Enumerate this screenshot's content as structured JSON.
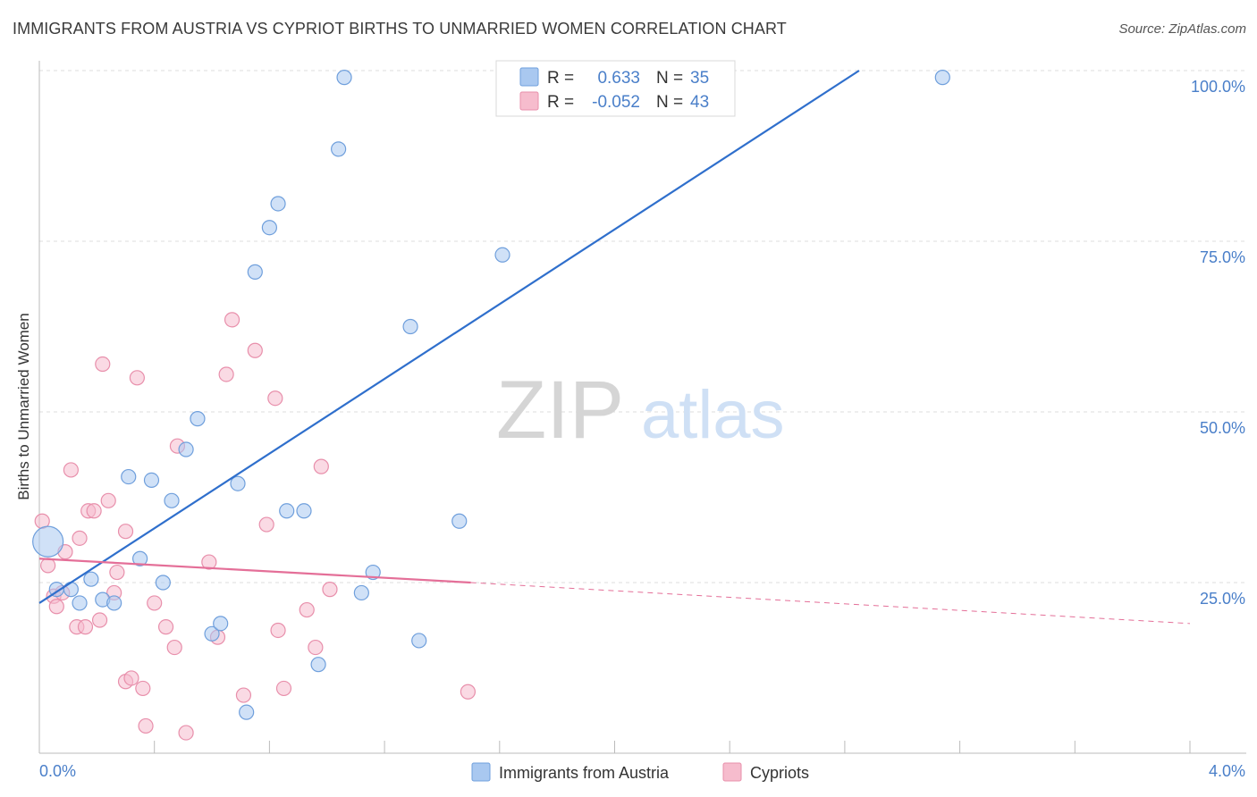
{
  "title": "IMMIGRANTS FROM AUSTRIA VS CYPRIOT BIRTHS TO UNMARRIED WOMEN CORRELATION CHART",
  "source": "Source: ZipAtlas.com",
  "watermark": {
    "zip": "ZIP",
    "atlas": "atlas"
  },
  "colors": {
    "blue_fill": "#a9c8f0",
    "blue_stroke": "#6f9fdc",
    "blue_line": "#2f6fcc",
    "pink_fill": "#f6bccd",
    "pink_stroke": "#e88fab",
    "pink_line": "#e46f98",
    "axis_text": "#4a7fc9",
    "grid": "#dddddd"
  },
  "legend_box": {
    "rows": [
      {
        "r_label": "R =",
        "r_value": "0.633",
        "n_label": "N =",
        "n_value": "35"
      },
      {
        "r_label": "R =",
        "r_value": "-0.052",
        "n_label": "N =",
        "n_value": "43"
      }
    ]
  },
  "chart_data": {
    "type": "scatter",
    "xlabel": "",
    "ylabel": "Births to Unmarried Women",
    "xlim": [
      0,
      4.0
    ],
    "ylim": [
      0,
      100
    ],
    "x_tick_labels": [
      "0.0%",
      "4.0%"
    ],
    "y_tick_values": [
      25,
      50,
      75,
      100
    ],
    "y_tick_labels": [
      "25.0%",
      "50.0%",
      "75.0%",
      "100.0%"
    ],
    "grid": true,
    "legend_position": "bottom",
    "series": [
      {
        "name": "Immigrants from Austria",
        "color": "blue",
        "r": 0.633,
        "n": 35,
        "trend": {
          "x1": 0.0,
          "y1": 22.0,
          "x2": 2.85,
          "y2": 100.0
        },
        "points": [
          {
            "x": 0.03,
            "y": 31.0,
            "big": true
          },
          {
            "x": 0.06,
            "y": 24.0
          },
          {
            "x": 0.11,
            "y": 24.0
          },
          {
            "x": 0.14,
            "y": 22.0
          },
          {
            "x": 0.18,
            "y": 25.5
          },
          {
            "x": 0.22,
            "y": 22.5
          },
          {
            "x": 0.26,
            "y": 22.0
          },
          {
            "x": 0.31,
            "y": 40.5
          },
          {
            "x": 0.35,
            "y": 28.5
          },
          {
            "x": 0.39,
            "y": 40.0
          },
          {
            "x": 0.43,
            "y": 25.0
          },
          {
            "x": 0.46,
            "y": 37.0
          },
          {
            "x": 0.51,
            "y": 44.5
          },
          {
            "x": 0.55,
            "y": 49.0
          },
          {
            "x": 0.6,
            "y": 17.5
          },
          {
            "x": 0.63,
            "y": 19.0
          },
          {
            "x": 0.69,
            "y": 39.5
          },
          {
            "x": 0.72,
            "y": 6.0
          },
          {
            "x": 0.75,
            "y": 70.5
          },
          {
            "x": 0.8,
            "y": 77.0
          },
          {
            "x": 0.83,
            "y": 80.5
          },
          {
            "x": 0.86,
            "y": 35.5
          },
          {
            "x": 0.92,
            "y": 35.5
          },
          {
            "x": 0.97,
            "y": 13.0
          },
          {
            "x": 1.04,
            "y": 88.5
          },
          {
            "x": 1.06,
            "y": 99.0
          },
          {
            "x": 1.12,
            "y": 23.5
          },
          {
            "x": 1.16,
            "y": 26.5
          },
          {
            "x": 1.32,
            "y": 16.5
          },
          {
            "x": 1.29,
            "y": 62.5
          },
          {
            "x": 1.46,
            "y": 34.0
          },
          {
            "x": 1.61,
            "y": 73.0
          },
          {
            "x": 1.83,
            "y": 99.0
          },
          {
            "x": 2.26,
            "y": 99.0
          },
          {
            "x": 3.14,
            "y": 99.0
          }
        ]
      },
      {
        "name": "Cypriots",
        "color": "pink",
        "r": -0.052,
        "n": 43,
        "trend_solid": {
          "x1": 0.0,
          "y1": 28.5,
          "x2": 1.5,
          "y2": 25.0
        },
        "trend_dashed": {
          "x1": 1.5,
          "y1": 25.0,
          "x2": 4.0,
          "y2": 19.0
        },
        "points": [
          {
            "x": 0.01,
            "y": 34.0
          },
          {
            "x": 0.03,
            "y": 27.5
          },
          {
            "x": 0.05,
            "y": 23.0
          },
          {
            "x": 0.06,
            "y": 21.5
          },
          {
            "x": 0.08,
            "y": 23.5
          },
          {
            "x": 0.09,
            "y": 29.5
          },
          {
            "x": 0.11,
            "y": 41.5
          },
          {
            "x": 0.13,
            "y": 18.5
          },
          {
            "x": 0.14,
            "y": 31.5
          },
          {
            "x": 0.16,
            "y": 18.5
          },
          {
            "x": 0.17,
            "y": 35.5
          },
          {
            "x": 0.19,
            "y": 35.5
          },
          {
            "x": 0.21,
            "y": 19.5
          },
          {
            "x": 0.22,
            "y": 57.0
          },
          {
            "x": 0.24,
            "y": 37.0
          },
          {
            "x": 0.26,
            "y": 23.5
          },
          {
            "x": 0.27,
            "y": 26.5
          },
          {
            "x": 0.3,
            "y": 32.5
          },
          {
            "x": 0.3,
            "y": 10.5
          },
          {
            "x": 0.32,
            "y": 11.0
          },
          {
            "x": 0.34,
            "y": 55.0
          },
          {
            "x": 0.36,
            "y": 9.5
          },
          {
            "x": 0.37,
            "y": 4.0
          },
          {
            "x": 0.4,
            "y": 22.0
          },
          {
            "x": 0.44,
            "y": 18.5
          },
          {
            "x": 0.47,
            "y": 15.5
          },
          {
            "x": 0.48,
            "y": 45.0
          },
          {
            "x": 0.51,
            "y": 3.0
          },
          {
            "x": 0.59,
            "y": 28.0
          },
          {
            "x": 0.62,
            "y": 17.0
          },
          {
            "x": 0.65,
            "y": 55.5
          },
          {
            "x": 0.67,
            "y": 63.5
          },
          {
            "x": 0.71,
            "y": 8.5
          },
          {
            "x": 0.75,
            "y": 59.0
          },
          {
            "x": 0.79,
            "y": 33.5
          },
          {
            "x": 0.82,
            "y": 52.0
          },
          {
            "x": 0.83,
            "y": 18.0
          },
          {
            "x": 0.85,
            "y": 9.5
          },
          {
            "x": 0.93,
            "y": 21.0
          },
          {
            "x": 0.96,
            "y": 15.5
          },
          {
            "x": 0.98,
            "y": 42.0
          },
          {
            "x": 1.01,
            "y": 24.0
          },
          {
            "x": 1.49,
            "y": 9.0
          }
        ]
      }
    ]
  }
}
